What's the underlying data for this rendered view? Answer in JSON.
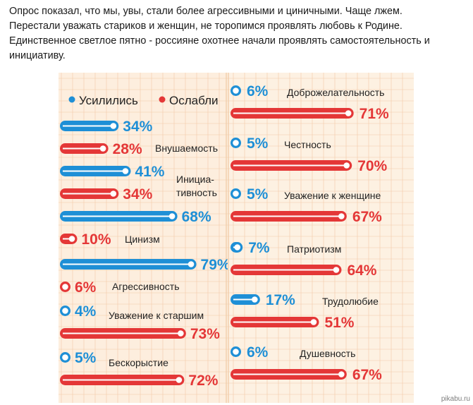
{
  "page": {
    "intro_lines": [
      "Опрос показал, что мы, увы, стали более агрессивными и циничными. Чаще лжем.",
      "Перестали уважать стариков и женщин, не торопимся проявлять любовь к Родине.",
      "Единственное светлое пятно - россияне охотнее начали проявлять самостоятельность и",
      "инициативу."
    ],
    "watermark": "pikabu.ru"
  },
  "legend": {
    "increased": "Усилились",
    "weakened": "Ослабли"
  },
  "colors": {
    "increased": "#1e8fd6",
    "weakened": "#e43737",
    "left_bg": "#fdeede",
    "right_bg": "#fdf1e2",
    "grid": "#f3c9a8",
    "text": "#222222"
  },
  "chart_data": {
    "type": "bar",
    "orientation": "horizontal",
    "series": [
      {
        "name": "Усилились",
        "values": [
          34,
          41,
          68,
          79,
          4,
          5,
          6,
          5,
          5,
          7,
          17,
          6
        ]
      },
      {
        "name": "Ослабли",
        "values": [
          28,
          34,
          10,
          6,
          73,
          72,
          71,
          70,
          67,
          64,
          51,
          67
        ]
      }
    ],
    "categories": [
      "Внушаемость",
      "Инициа-тивность",
      "Цинизм",
      "Агрессивность",
      "Уважение к старшим",
      "Бескорыстие",
      "Доброжелательность",
      "Честность",
      "Уважение к женщине",
      "Патриотизм",
      "Трудолюбие",
      "Душевность"
    ],
    "items": [
      {
        "label_lines": [
          "Внушаемость"
        ],
        "increased": 34,
        "increased_text": "34%",
        "weakened": 28,
        "weakened_text": "28%"
      },
      {
        "label_lines": [
          "Инициа-",
          "тивность"
        ],
        "increased": 41,
        "increased_text": "41%",
        "weakened": 34,
        "weakened_text": "34%"
      },
      {
        "label_lines": [
          "Цинизм"
        ],
        "increased": 68,
        "increased_text": "68%",
        "weakened": 10,
        "weakened_text": "10%"
      },
      {
        "label_lines": [
          "Агрессивность"
        ],
        "increased": 79,
        "increased_text": "79%",
        "weakened": 6,
        "weakened_text": "6%"
      },
      {
        "label_lines": [
          "Уважение к старшим"
        ],
        "increased": 4,
        "increased_text": "4%",
        "weakened": 73,
        "weakened_text": "73%"
      },
      {
        "label_lines": [
          "Бескорыстие"
        ],
        "increased": 5,
        "increased_text": "5%",
        "weakened": 72,
        "weakened_text": "72%"
      },
      {
        "label_lines": [
          "Доброжелательность"
        ],
        "increased": 6,
        "increased_text": "6%",
        "weakened": 71,
        "weakened_text": "71%"
      },
      {
        "label_lines": [
          "Честность"
        ],
        "increased": 5,
        "increased_text": "5%",
        "weakened": 70,
        "weakened_text": "70%"
      },
      {
        "label_lines": [
          "Уважение к женщине"
        ],
        "increased": 5,
        "increased_text": "5%",
        "weakened": 67,
        "weakened_text": "67%"
      },
      {
        "label_lines": [
          "Патриотизм"
        ],
        "increased": 7,
        "increased_text": "7%",
        "weakened": 64,
        "weakened_text": "64%"
      },
      {
        "label_lines": [
          "Трудолюбие"
        ],
        "increased": 17,
        "increased_text": "17%",
        "weakened": 51,
        "weakened_text": "51%"
      },
      {
        "label_lines": [
          "Душевность"
        ],
        "increased": 6,
        "increased_text": "6%",
        "weakened": 67,
        "weakened_text": "67%"
      }
    ],
    "legend_position": "top-left",
    "grid": true
  }
}
